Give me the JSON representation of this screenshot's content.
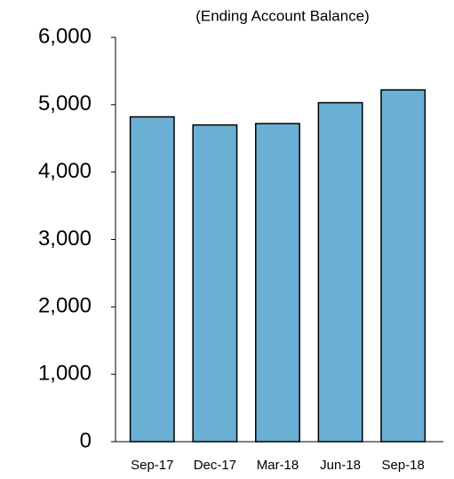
{
  "chart_data": {
    "type": "bar",
    "title": "(Ending Account Balance)",
    "categories": [
      "Sep-17",
      "Dec-17",
      "Mar-18",
      "Jun-18",
      "Sep-18"
    ],
    "values": [
      4820,
      4700,
      4720,
      5030,
      5220
    ],
    "color": "#6aafd4",
    "ylim": [
      0,
      6000
    ],
    "yticks": [
      0,
      {
        "value": 1000,
        "label": "1,000"
      },
      {
        "value": 2000,
        "label": "2,000"
      },
      {
        "value": 3000,
        "label": "3,000"
      },
      {
        "value": 4000,
        "label": "4,000"
      },
      {
        "value": 5000,
        "label": "5,000"
      },
      {
        "value": 6000,
        "label": "6,000"
      }
    ],
    "grid": false
  }
}
